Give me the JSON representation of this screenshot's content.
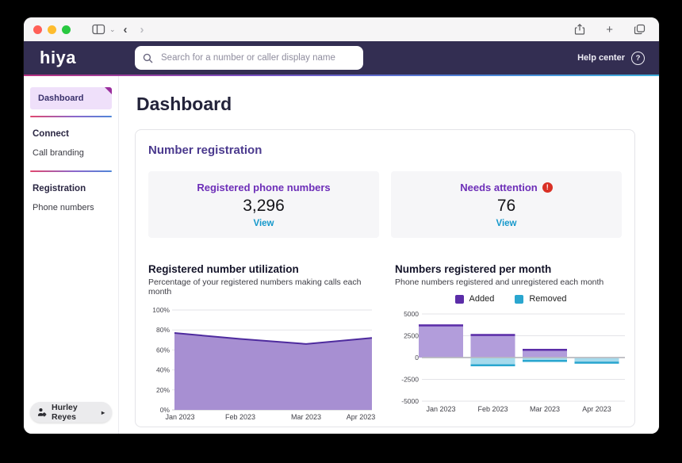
{
  "header": {
    "logo_text": "hiya",
    "search_placeholder": "Search for a number or caller display name",
    "help_label": "Help center"
  },
  "sidebar": {
    "active_item_label": "Dashboard",
    "sections": [
      {
        "heading": "Connect",
        "items": [
          {
            "label": "Call branding"
          }
        ]
      },
      {
        "heading": "Registration",
        "items": [
          {
            "label": "Phone numbers"
          }
        ]
      }
    ],
    "user_name": "Hurley Reyes"
  },
  "main": {
    "page_title": "Dashboard",
    "section_title": "Number registration",
    "stats": [
      {
        "title": "Registered phone numbers",
        "value": "3,296",
        "link": "View"
      },
      {
        "title": "Needs attention",
        "value": "76",
        "link": "View",
        "alert": true
      }
    ]
  },
  "icons": {
    "back": "‹",
    "forward": "›",
    "new_tab": "+",
    "help": "?",
    "alert": "!",
    "user_menu_arrow": "▸",
    "toolbar_chevron": "⌄"
  },
  "colors": {
    "header_navy": "#332e52",
    "accent_purple": "#6d2eb8",
    "link_cyan": "#1598cb",
    "alert_red": "#d93025",
    "sidebar_active_bg": "#efe0fa",
    "fold_purple": "#9a2d9d",
    "mac_close": "#ff5f57",
    "mac_minimize": "#febc2e",
    "mac_zoom": "#28c840"
  },
  "chart_data": [
    {
      "type": "area",
      "title": "Registered number utilization",
      "subtitle": "Percentage of your registered numbers making calls each month",
      "x": [
        "Jan 2023",
        "Feb 2023",
        "Mar 2023",
        "Apr 2023"
      ],
      "values": [
        77,
        71,
        66,
        72
      ],
      "ylim": [
        0,
        100
      ],
      "yticks": [
        100,
        80,
        60,
        40,
        20,
        0
      ],
      "ytick_labels": [
        "100%",
        "80%",
        "60%",
        "40%",
        "20%",
        "0%"
      ],
      "grid": true,
      "fill_color": "#a78fd2",
      "line_color": "#4e2b9e"
    },
    {
      "type": "bar",
      "title": "Numbers registered per month",
      "subtitle": "Phone numbers registered and unregistered each month",
      "categories": [
        "Jan 2023",
        "Feb 2023",
        "Mar 2023",
        "Apr 2023"
      ],
      "series": [
        {
          "name": "Added",
          "values": [
            3800,
            2700,
            1000,
            0
          ],
          "fill": "#b29ddb",
          "edge": "#5b2da8"
        },
        {
          "name": "Removed",
          "values": [
            0,
            -1000,
            -500,
            -700
          ],
          "fill": "#a5daec",
          "edge": "#2aa6cf"
        }
      ],
      "ylim": [
        -5000,
        5000
      ],
      "yticks": [
        5000,
        2500,
        0,
        -2500,
        -5000
      ],
      "grid": true,
      "legend_position": "top"
    }
  ]
}
